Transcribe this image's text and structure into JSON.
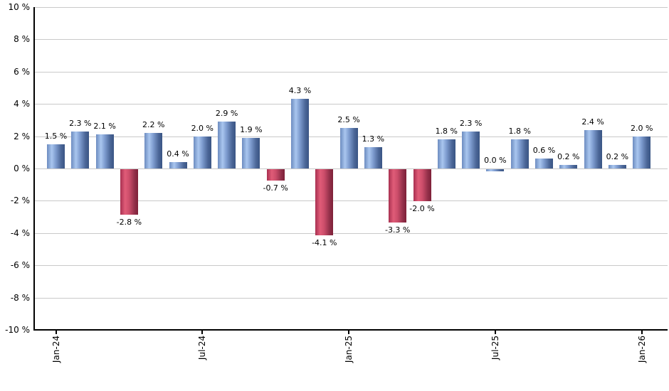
{
  "chart_data": {
    "type": "bar",
    "title": "",
    "xlabel": "",
    "ylabel": "",
    "ylim": [
      -10,
      10
    ],
    "grid": true,
    "legend": "none",
    "values": [
      1.5,
      2.3,
      2.1,
      -2.8,
      2.2,
      0.4,
      2.0,
      2.9,
      1.9,
      -0.7,
      4.3,
      -4.1,
      2.5,
      1.3,
      -3.3,
      -2.0,
      1.8,
      2.3,
      0.0,
      1.8,
      0.6,
      0.2,
      2.4,
      0.2,
      2.0
    ],
    "value_label_suffix": " %",
    "x_ticks": [
      {
        "index": 0,
        "label": "Jan-24"
      },
      {
        "index": 6,
        "label": "Jul-24"
      },
      {
        "index": 12,
        "label": "Jan-25"
      },
      {
        "index": 18,
        "label": "Jul-25"
      },
      {
        "index": 24,
        "label": "Jan-26"
      }
    ],
    "y_ticks": [
      {
        "value": 10,
        "label": "10 %"
      },
      {
        "value": 8,
        "label": "8 %"
      },
      {
        "value": 6,
        "label": "6 %"
      },
      {
        "value": 4,
        "label": "4 %"
      },
      {
        "value": 2,
        "label": "2 %"
      },
      {
        "value": 0,
        "label": "0 %"
      },
      {
        "value": -2,
        "label": "-2 %"
      },
      {
        "value": -4,
        "label": "-4 %"
      },
      {
        "value": -6,
        "label": "-6 %"
      },
      {
        "value": -8,
        "label": "-8 %"
      },
      {
        "value": -10,
        "label": "-10 %"
      }
    ],
    "colors": {
      "background": "#ffffff",
      "gridline": "#c9c9c9",
      "axis": "#000000",
      "label_text": "#000000",
      "positive_bar_base": "#6d8cc0",
      "positive_bar_highlight": "#a9c6ef",
      "positive_bar_mid": "#7d9bce",
      "positive_bar_shadow": "#4b6697",
      "positive_bar_edge": "#3a5584",
      "negative_bar_base": "#a83050",
      "negative_bar_highlight": "#e05c78",
      "negative_bar_mid": "#cc4d6a",
      "negative_bar_shadow": "#93304a",
      "negative_bar_edge": "#7e2038"
    }
  }
}
